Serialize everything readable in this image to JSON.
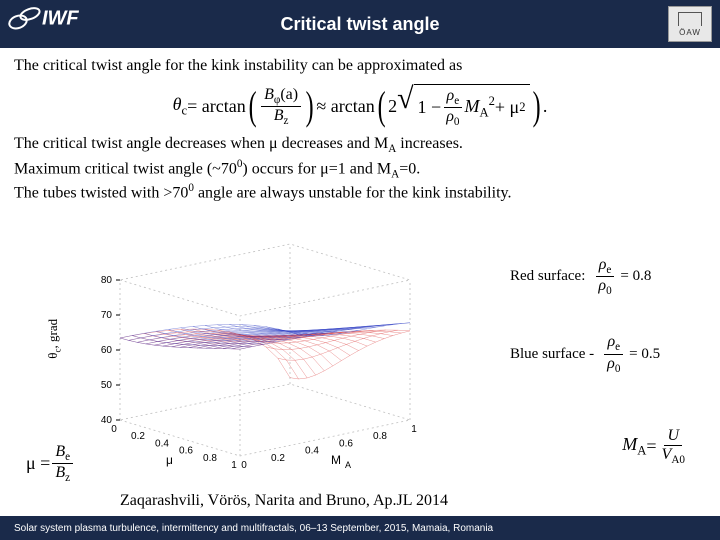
{
  "header": {
    "title": "Critical twist angle",
    "logo_left_text": "IWF",
    "logo_right_text": "ÖAW"
  },
  "text": {
    "p1": "The critical twist angle for the kink instability can be approximated as",
    "p2a": "The critical twist angle decreases when μ decreases and M",
    "p2a_sub": "A",
    "p2a_end": " increases.",
    "p2b": "Maximum critical twist angle (~70",
    "p2b_sup": "0",
    "p2b_end": ") occurs for μ=1 and M",
    "p2b_sub": "A",
    "p2b_tail": "=0.",
    "p2c": "The tubes twisted with >70",
    "p2c_sup": "0",
    "p2c_end": " angle are always unstable for the kink instability.",
    "citation": "Zaqarashvili, Vörös, Narita and Bruno, Ap.JL 2014"
  },
  "formula": {
    "theta": "θ",
    "theta_sub": "c",
    "eq": " = arctan",
    "Bphi": "B",
    "Bphi_sub": "φ",
    "Bphi_arg": "(a)",
    "Bz": "B",
    "Bz_sub": "z",
    "approx": " ≈ arctan",
    "two": "2",
    "one_minus": "1 − ",
    "rho_e": "ρ",
    "rho_e_sub": "e",
    "rho_0": "ρ",
    "rho_0_sub": "0",
    "MA": "M",
    "MA_sub": "A",
    "MA_sup": "2",
    "plus_mu": " + μ",
    "mu_sup": "2",
    "period": "."
  },
  "legend": {
    "red_label": "Red surface:",
    "blue_label": "Blue surface -",
    "red_ratio": "0.8",
    "blue_ratio": "0.5"
  },
  "mu_def": {
    "mu": "μ = ",
    "Be": "B",
    "Be_sub": "e",
    "Bz": "B",
    "Bz_sub": "z"
  },
  "ma_def": {
    "MA": "M",
    "MA_sub": "A",
    "eq": " = ",
    "U": "U",
    "VA0": "V",
    "VA0_sub": "A0"
  },
  "chart": {
    "type": "3d-surface",
    "surfaces": [
      {
        "name": "red",
        "color": "#d83030",
        "rho_ratio": 0.8
      },
      {
        "name": "blue",
        "color": "#2030c0",
        "rho_ratio": 0.5
      }
    ],
    "z_axis": {
      "label": "θ_c, grad",
      "ticks": [
        40,
        50,
        60,
        70,
        80
      ],
      "lim": [
        40,
        80
      ]
    },
    "x_axis": {
      "label": "μ",
      "ticks": [
        0,
        0.2,
        0.4,
        0.6,
        0.8,
        1
      ],
      "lim": [
        0,
        1
      ]
    },
    "y_axis": {
      "label": "M_A",
      "ticks": [
        0,
        0.2,
        0.4,
        0.6,
        0.8,
        1
      ],
      "lim": [
        0,
        1
      ]
    },
    "grid_color": "#bfbfbf",
    "background_color": "#ffffff",
    "tick_fontsize": 10,
    "label_fontsize": 12,
    "mesh_line_width": 0.3
  },
  "footer": {
    "text": "Solar system plasma turbulence, intermittency and multifractals, 06–13 September, 2015, Mamaia, Romania"
  }
}
